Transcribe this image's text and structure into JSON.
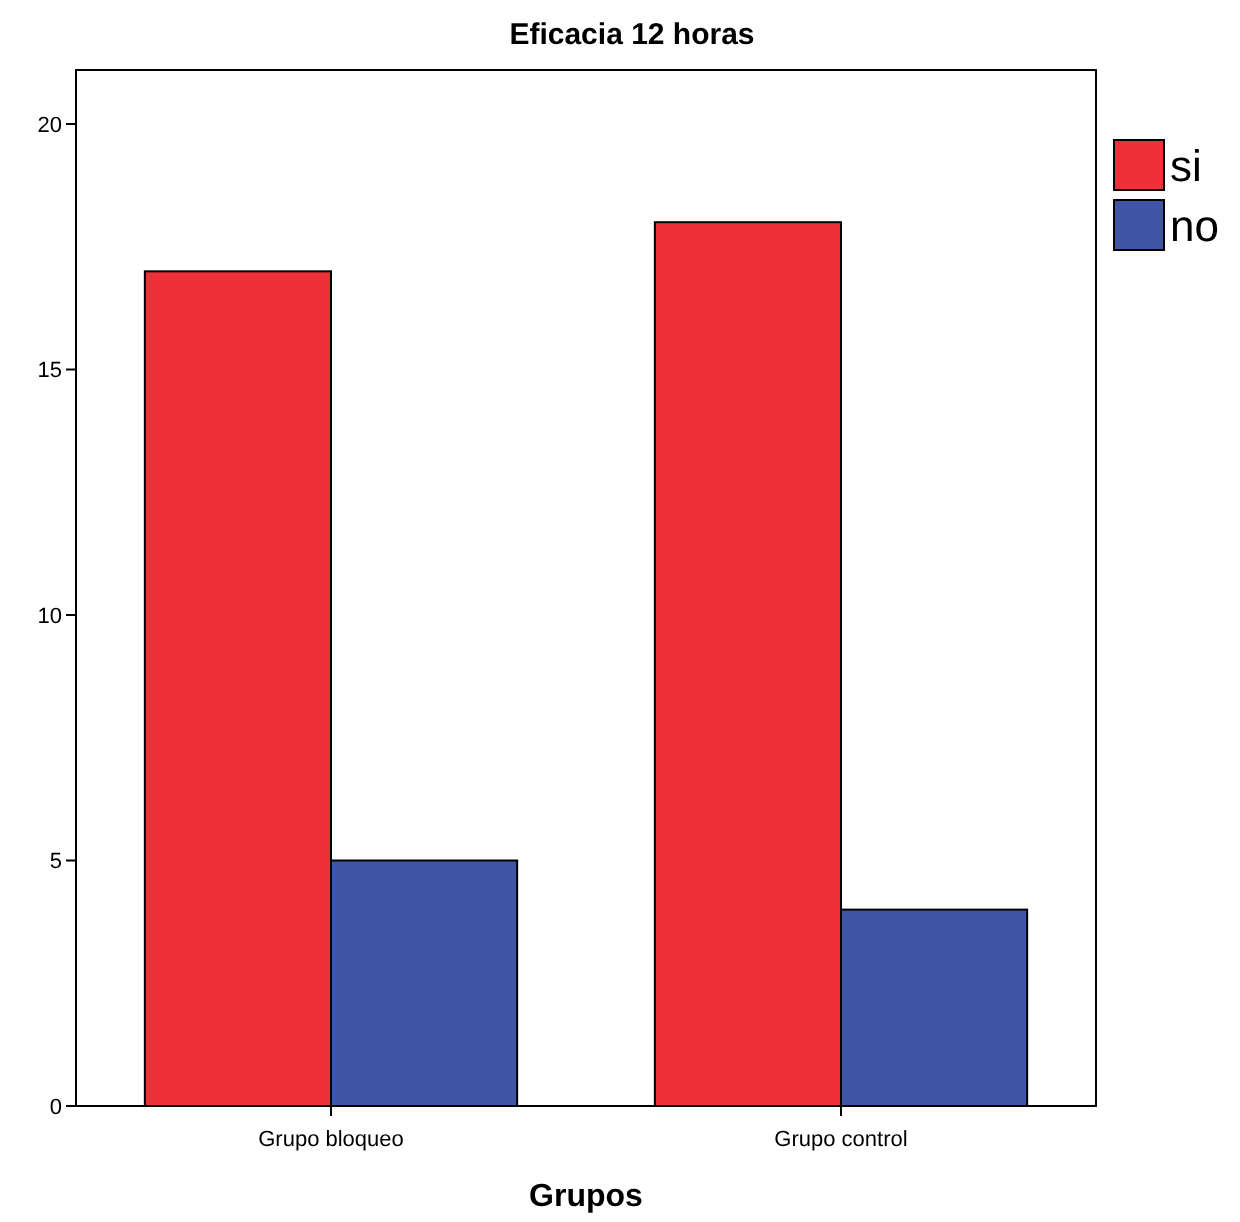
{
  "chart_data": {
    "type": "bar",
    "title": "Eficacia 12 horas",
    "xlabel": "Grupos",
    "categories": [
      "Grupo bloqueo",
      "Grupo control"
    ],
    "series": [
      {
        "name": "si",
        "color": "#ee3039",
        "values": [
          17,
          18
        ]
      },
      {
        "name": "no",
        "color": "#3f56a5",
        "values": [
          5,
          4
        ]
      }
    ],
    "ylim": [
      0,
      21.1
    ],
    "yticks": [
      0,
      5,
      10,
      15,
      20
    ],
    "grid": false,
    "legend": "right"
  }
}
